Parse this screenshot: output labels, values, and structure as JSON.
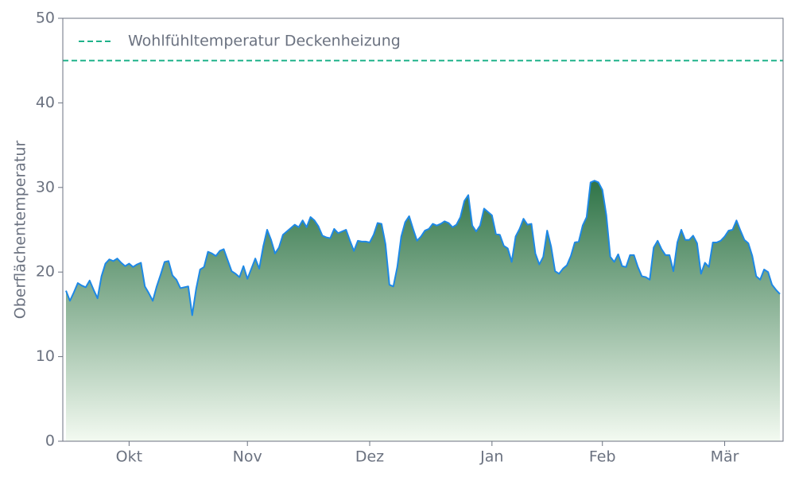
{
  "chart_data": {
    "type": "area",
    "ylabel": "Oberflächentemperatur",
    "categories": [
      null,
      null,
      null,
      null,
      null,
      null,
      null,
      null,
      null,
      null,
      null,
      null,
      null,
      null,
      null,
      null,
      "Okt",
      null,
      null,
      null,
      null,
      null,
      null,
      null,
      null,
      null,
      null,
      null,
      null,
      null,
      null,
      null,
      null,
      null,
      null,
      null,
      null,
      null,
      null,
      null,
      null,
      null,
      null,
      null,
      null,
      null,
      "Nov",
      null,
      null,
      null,
      null,
      null,
      null,
      null,
      null,
      null,
      null,
      null,
      null,
      null,
      null,
      null,
      null,
      null,
      null,
      null,
      null,
      null,
      null,
      null,
      null,
      null,
      null,
      null,
      null,
      null,
      null,
      "Dez",
      null,
      null,
      null,
      null,
      null,
      null,
      null,
      null,
      null,
      null,
      null,
      null,
      null,
      null,
      null,
      null,
      null,
      null,
      null,
      null,
      null,
      null,
      null,
      null,
      null,
      null,
      null,
      null,
      null,
      null,
      "Jan",
      null,
      null,
      null,
      null,
      null,
      null,
      null,
      null,
      null,
      null,
      null,
      null,
      null,
      null,
      null,
      null,
      null,
      null,
      null,
      null,
      null,
      null,
      null,
      null,
      null,
      null,
      null,
      "Feb",
      null,
      null,
      null,
      null,
      null,
      null,
      null,
      null,
      null,
      null,
      null,
      null,
      null,
      null,
      null,
      null,
      null,
      null,
      null,
      null,
      null,
      null,
      null,
      null,
      null,
      null,
      null,
      null,
      null,
      null,
      "Mär",
      null,
      null,
      null,
      null,
      null,
      null,
      null,
      null,
      null,
      null,
      null,
      null,
      null,
      null
    ],
    "values": [
      17.8,
      16.6,
      17.6,
      18.7,
      18.4,
      18.2,
      19.0,
      17.9,
      16.9,
      19.5,
      21.0,
      21.5,
      21.3,
      21.6,
      21.1,
      20.7,
      21.0,
      20.6,
      20.9,
      21.1,
      18.3,
      17.5,
      16.6,
      18.3,
      19.7,
      21.2,
      21.3,
      19.6,
      19.1,
      18.1,
      18.2,
      18.3,
      14.9,
      18.0,
      20.3,
      20.6,
      22.4,
      22.2,
      21.9,
      22.5,
      22.7,
      21.4,
      20.1,
      19.8,
      19.4,
      20.7,
      19.2,
      20.4,
      21.6,
      20.4,
      23.0,
      25.0,
      23.8,
      22.2,
      22.9,
      24.4,
      24.8,
      25.2,
      25.6,
      25.3,
      26.1,
      25.3,
      26.5,
      26.1,
      25.4,
      24.3,
      24.1,
      24.0,
      25.1,
      24.6,
      24.8,
      25.0,
      23.7,
      22.5,
      23.7,
      23.6,
      23.6,
      23.5,
      24.4,
      25.8,
      25.7,
      23.3,
      18.5,
      18.3,
      20.6,
      24.2,
      25.9,
      26.6,
      25.1,
      23.7,
      24.2,
      24.9,
      25.1,
      25.7,
      25.5,
      25.7,
      26.0,
      25.8,
      25.3,
      25.6,
      26.5,
      28.4,
      29.1,
      25.5,
      24.8,
      25.5,
      27.5,
      27.1,
      26.7,
      24.5,
      24.4,
      23.1,
      22.8,
      21.2,
      24.2,
      25.1,
      26.3,
      25.6,
      25.7,
      22.2,
      20.9,
      21.8,
      24.9,
      23.0,
      20.1,
      19.8,
      20.4,
      20.8,
      21.9,
      23.5,
      23.6,
      25.5,
      26.5,
      30.6,
      30.8,
      30.6,
      29.7,
      26.7,
      21.8,
      21.2,
      22.1,
      20.7,
      20.6,
      22.0,
      22.0,
      20.6,
      19.5,
      19.4,
      19.1,
      22.9,
      23.7,
      22.7,
      22.0,
      22.0,
      20.1,
      23.5,
      25.0,
      23.8,
      23.8,
      24.3,
      23.4,
      19.8,
      21.1,
      20.6,
      23.5,
      23.5,
      23.7,
      24.2,
      24.9,
      25.0,
      26.1,
      24.9,
      23.8,
      23.4,
      21.9,
      19.5,
      19.1,
      20.3,
      20.0,
      18.5,
      17.9,
      17.4
    ],
    "color": "#1e88e5",
    "area_gradient": [
      "#2e7346",
      "#f3faf1"
    ],
    "reference_line": {
      "value": 45,
      "label": "Wohlfühltemperatur Deckenheizung",
      "color": "#1fb28a"
    },
    "legend": "upper left",
    "ylim": [
      0,
      50
    ],
    "yticks": [
      0,
      10,
      20,
      30,
      40,
      50
    ],
    "grid": false
  }
}
